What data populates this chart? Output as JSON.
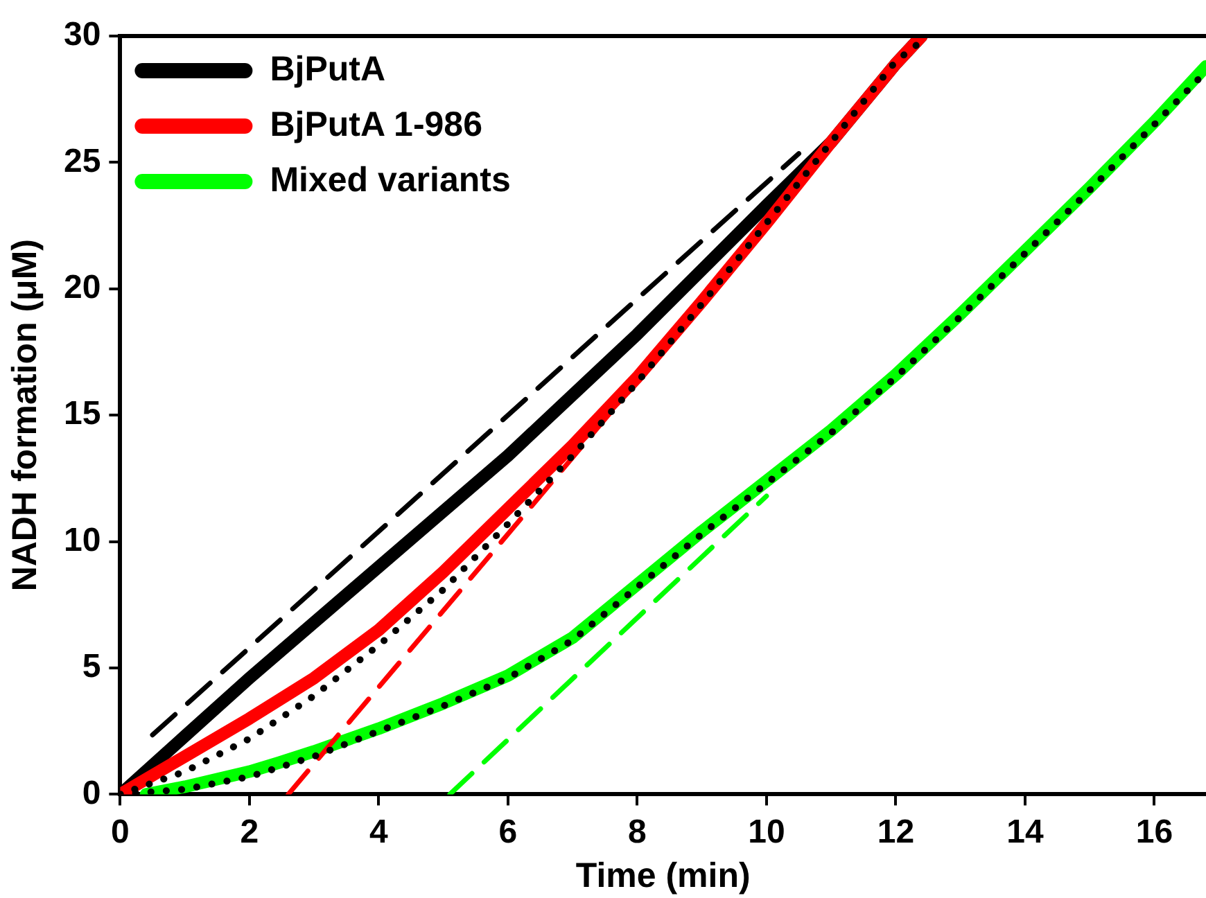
{
  "chart_data": {
    "type": "line",
    "xlabel": "Time (min)",
    "ylabel": "NADH formation (μM)",
    "xlim": [
      0,
      16.8
    ],
    "xticks": [
      0,
      2,
      4,
      6,
      8,
      10,
      12,
      14,
      16
    ],
    "ylim": [
      0,
      30
    ],
    "yticks": [
      0,
      5,
      10,
      15,
      20,
      25,
      30
    ],
    "grid": false,
    "legend": "top left",
    "marker": "none",
    "series": [
      {
        "name": "BjPutA",
        "color": "#000000",
        "line_style": "solid",
        "x": [
          0,
          1,
          2,
          4,
          6,
          8,
          10,
          11,
          12,
          12.4
        ],
        "values": [
          0,
          2.3,
          4.6,
          9.0,
          13.4,
          18.2,
          23.3,
          25.8,
          28.9,
          30
        ]
      },
      {
        "name": "BjPutA 1-986",
        "color": "#ff0000",
        "line_style": "solid",
        "x": [
          0,
          1,
          2,
          3,
          4,
          5,
          6,
          7,
          8,
          9,
          10,
          11,
          12,
          12.4
        ],
        "values": [
          0,
          1.5,
          3.0,
          4.6,
          6.5,
          8.8,
          11.3,
          13.8,
          16.5,
          19.5,
          22.6,
          25.8,
          28.9,
          30
        ]
      },
      {
        "name": "Mixed variants",
        "color": "#00ff00",
        "line_style": "solid",
        "x": [
          0.4,
          1,
          2,
          2.45,
          3,
          4,
          5,
          6,
          7,
          8,
          9,
          10,
          11,
          12,
          13,
          14,
          15,
          16,
          16.8
        ],
        "values": [
          0,
          0.3,
          0.9,
          1.25,
          1.7,
          2.6,
          3.6,
          4.7,
          6.2,
          8.3,
          10.4,
          12.4,
          14.4,
          16.6,
          19.0,
          21.5,
          24.0,
          26.6,
          28.8
        ]
      },
      {
        "color": "#000000",
        "line_style": "dashed",
        "x": [
          0.5,
          10.5
        ],
        "values": [
          2.35,
          25.35
        ]
      },
      {
        "color": "#ff0000",
        "line_style": "dashed",
        "x": [
          2.6,
          9.5
        ],
        "values": [
          0,
          20.9
        ]
      },
      {
        "color": "#00ff00",
        "line_style": "dashed",
        "x": [
          5.1,
          10
        ],
        "values": [
          0,
          11.8
        ]
      },
      {
        "color": "#000000",
        "line_style": "dotted",
        "x": [
          0,
          1,
          2,
          3,
          4,
          5,
          6,
          7,
          8,
          9,
          10,
          11,
          12,
          12.5
        ],
        "values": [
          0,
          0.9,
          2.2,
          3.9,
          5.9,
          8.1,
          10.7,
          13.4,
          16.3,
          19.4,
          22.6,
          25.8,
          29.0,
          30
        ]
      },
      {
        "color": "#000000",
        "line_style": "dotted",
        "x": [
          0,
          1,
          2,
          3,
          4,
          5,
          6,
          7,
          8,
          9,
          10,
          11,
          12,
          13,
          14,
          15,
          16,
          16.8
        ],
        "values": [
          0,
          0.2,
          0.7,
          1.5,
          2.5,
          3.5,
          4.6,
          6.1,
          8.2,
          10.3,
          12.3,
          14.3,
          16.5,
          18.9,
          21.4,
          23.9,
          26.5,
          28.6
        ]
      }
    ]
  }
}
